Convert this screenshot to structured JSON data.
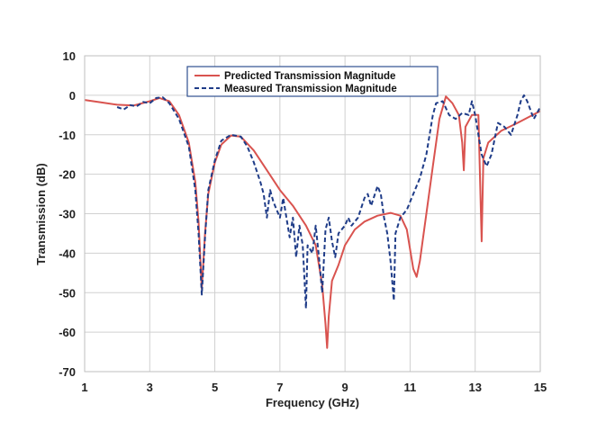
{
  "chart_data": {
    "type": "line",
    "title": "",
    "xlabel": "Frequency (GHz)",
    "ylabel": "Transmission (dB)",
    "xlim": [
      1,
      15
    ],
    "ylim": [
      -70,
      10
    ],
    "x_ticks": [
      "1",
      "3",
      "5",
      "7",
      "9",
      "11",
      "13",
      "15"
    ],
    "y_ticks": [
      "10",
      "0",
      "-10",
      "-20",
      "-30",
      "-40",
      "-50",
      "-60",
      "-70"
    ],
    "grid": true,
    "legend_position": "top-center",
    "series": [
      {
        "name": "Predicted Transmission Magnitude",
        "color": "#d9534f",
        "style": "solid",
        "points": [
          [
            1.0,
            -1.2
          ],
          [
            1.5,
            -1.8
          ],
          [
            2.0,
            -2.4
          ],
          [
            2.5,
            -2.6
          ],
          [
            3.0,
            -1.5
          ],
          [
            3.3,
            -0.7
          ],
          [
            3.6,
            -1.5
          ],
          [
            3.9,
            -5.0
          ],
          [
            4.2,
            -12.0
          ],
          [
            4.4,
            -22.0
          ],
          [
            4.5,
            -32.0
          ],
          [
            4.6,
            -49.0
          ],
          [
            4.7,
            -35.0
          ],
          [
            4.8,
            -25.0
          ],
          [
            5.0,
            -17.0
          ],
          [
            5.2,
            -12.5
          ],
          [
            5.5,
            -10.2
          ],
          [
            5.8,
            -10.5
          ],
          [
            6.2,
            -14.0
          ],
          [
            6.6,
            -19.0
          ],
          [
            7.0,
            -24.0
          ],
          [
            7.4,
            -28.0
          ],
          [
            7.8,
            -33.0
          ],
          [
            8.1,
            -38.0
          ],
          [
            8.3,
            -48.0
          ],
          [
            8.4,
            -58.0
          ],
          [
            8.45,
            -64.0
          ],
          [
            8.5,
            -56.0
          ],
          [
            8.6,
            -47.0
          ],
          [
            8.8,
            -43.0
          ],
          [
            9.0,
            -38.0
          ],
          [
            9.3,
            -34.0
          ],
          [
            9.6,
            -32.0
          ],
          [
            10.0,
            -30.5
          ],
          [
            10.4,
            -29.8
          ],
          [
            10.7,
            -30.5
          ],
          [
            10.9,
            -34.0
          ],
          [
            11.0,
            -39.0
          ],
          [
            11.1,
            -44.0
          ],
          [
            11.2,
            -46.0
          ],
          [
            11.3,
            -42.0
          ],
          [
            11.5,
            -30.0
          ],
          [
            11.7,
            -18.0
          ],
          [
            11.9,
            -6.0
          ],
          [
            12.1,
            -0.3
          ],
          [
            12.3,
            -2.0
          ],
          [
            12.5,
            -5.0
          ],
          [
            12.6,
            -12.0
          ],
          [
            12.65,
            -19.0
          ],
          [
            12.7,
            -8.0
          ],
          [
            12.9,
            -5.0
          ],
          [
            13.1,
            -5.0
          ],
          [
            13.2,
            -37.0
          ],
          [
            13.25,
            -16.0
          ],
          [
            13.4,
            -12.0
          ],
          [
            13.8,
            -9.0
          ],
          [
            14.3,
            -7.0
          ],
          [
            15.0,
            -4.0
          ]
        ]
      },
      {
        "name": "Measured Transmission Magnitude",
        "color": "#1f3c88",
        "style": "dashed",
        "points": [
          [
            2.0,
            -3.0
          ],
          [
            2.2,
            -3.6
          ],
          [
            2.4,
            -2.5
          ],
          [
            2.6,
            -2.8
          ],
          [
            2.8,
            -1.7
          ],
          [
            3.0,
            -2.0
          ],
          [
            3.2,
            -0.7
          ],
          [
            3.4,
            -0.5
          ],
          [
            3.6,
            -2.0
          ],
          [
            3.9,
            -6.0
          ],
          [
            4.2,
            -13.0
          ],
          [
            4.4,
            -24.0
          ],
          [
            4.5,
            -35.0
          ],
          [
            4.6,
            -50.5
          ],
          [
            4.7,
            -36.0
          ],
          [
            4.8,
            -24.0
          ],
          [
            5.0,
            -16.5
          ],
          [
            5.2,
            -11.5
          ],
          [
            5.5,
            -10.0
          ],
          [
            5.8,
            -10.5
          ],
          [
            6.0,
            -13.0
          ],
          [
            6.2,
            -17.0
          ],
          [
            6.4,
            -22.0
          ],
          [
            6.5,
            -25.0
          ],
          [
            6.6,
            -31.0
          ],
          [
            6.7,
            -24.0
          ],
          [
            6.8,
            -27.0
          ],
          [
            7.0,
            -31.0
          ],
          [
            7.1,
            -26.0
          ],
          [
            7.3,
            -36.0
          ],
          [
            7.4,
            -31.0
          ],
          [
            7.5,
            -41.0
          ],
          [
            7.6,
            -33.0
          ],
          [
            7.7,
            -38.0
          ],
          [
            7.8,
            -54.0
          ],
          [
            7.85,
            -38.0
          ],
          [
            8.0,
            -40.0
          ],
          [
            8.1,
            -33.0
          ],
          [
            8.2,
            -41.0
          ],
          [
            8.3,
            -50.0
          ],
          [
            8.4,
            -34.0
          ],
          [
            8.5,
            -31.0
          ],
          [
            8.6,
            -37.0
          ],
          [
            8.7,
            -41.0
          ],
          [
            8.8,
            -35.0
          ],
          [
            9.0,
            -33.0
          ],
          [
            9.1,
            -31.0
          ],
          [
            9.2,
            -33.0
          ],
          [
            9.4,
            -31.0
          ],
          [
            9.6,
            -26.0
          ],
          [
            9.7,
            -25.0
          ],
          [
            9.8,
            -28.0
          ],
          [
            10.0,
            -23.0
          ],
          [
            10.1,
            -25.0
          ],
          [
            10.2,
            -31.0
          ],
          [
            10.3,
            -35.0
          ],
          [
            10.4,
            -42.0
          ],
          [
            10.5,
            -52.0
          ],
          [
            10.55,
            -35.0
          ],
          [
            10.7,
            -31.0
          ],
          [
            10.9,
            -29.0
          ],
          [
            11.1,
            -25.0
          ],
          [
            11.3,
            -21.0
          ],
          [
            11.5,
            -15.0
          ],
          [
            11.7,
            -5.0
          ],
          [
            11.8,
            -2.0
          ],
          [
            12.0,
            -1.5
          ],
          [
            12.2,
            -5.0
          ],
          [
            12.4,
            -6.0
          ],
          [
            12.6,
            -4.5
          ],
          [
            12.8,
            -5.0
          ],
          [
            12.9,
            -1.5
          ],
          [
            13.0,
            -5.0
          ],
          [
            13.1,
            -10.0
          ],
          [
            13.2,
            -15.0
          ],
          [
            13.35,
            -18.0
          ],
          [
            13.5,
            -15.0
          ],
          [
            13.7,
            -7.0
          ],
          [
            13.9,
            -8.0
          ],
          [
            14.1,
            -10.0
          ],
          [
            14.3,
            -5.0
          ],
          [
            14.4,
            -1.5
          ],
          [
            14.5,
            0.0
          ],
          [
            14.6,
            -1.5
          ],
          [
            14.8,
            -6.0
          ],
          [
            15.0,
            -3.0
          ]
        ]
      }
    ]
  }
}
